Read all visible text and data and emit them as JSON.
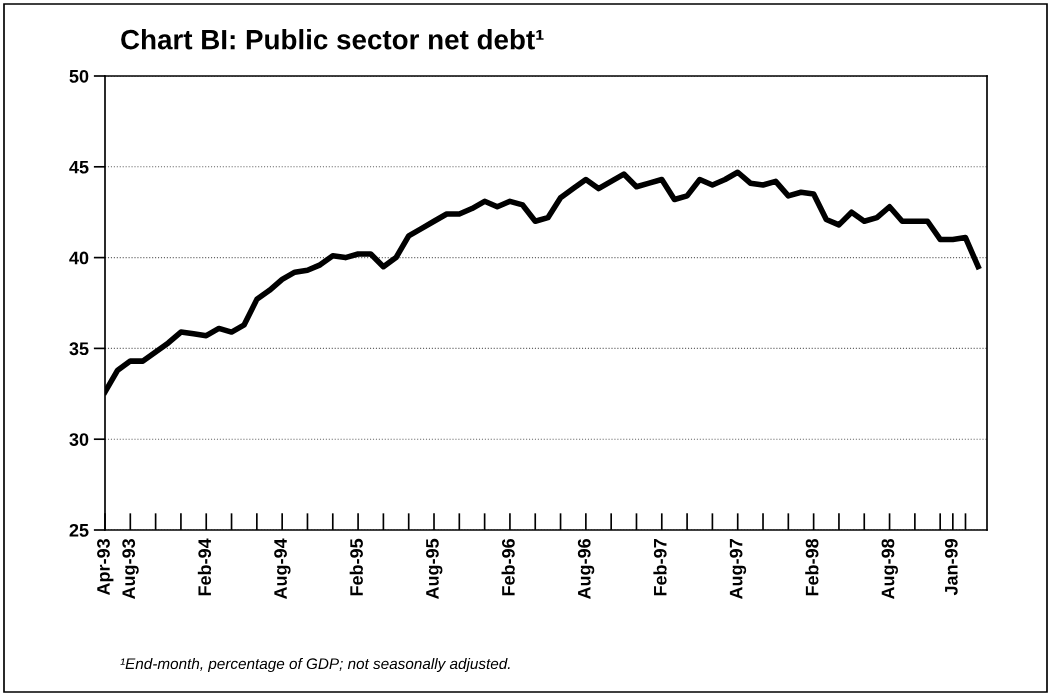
{
  "chart_data": {
    "type": "line",
    "title": "Chart BI: Public sector net debt¹",
    "categories": [
      "Apr-93",
      null,
      "Aug-93",
      null,
      null,
      null,
      null,
      null,
      "Feb-94",
      null,
      null,
      null,
      null,
      null,
      "Aug-94",
      null,
      null,
      null,
      null,
      null,
      "Feb-95",
      null,
      null,
      null,
      null,
      null,
      "Aug-95",
      null,
      null,
      null,
      null,
      null,
      "Feb-96",
      null,
      null,
      null,
      null,
      null,
      "Aug-96",
      null,
      null,
      null,
      null,
      null,
      "Feb-97",
      null,
      null,
      null,
      null,
      null,
      "Aug-97",
      null,
      null,
      null,
      null,
      null,
      "Feb-98",
      null,
      null,
      null,
      null,
      null,
      "Aug-98",
      null,
      null,
      null,
      null,
      "Jan-99",
      null,
      null
    ],
    "series": [
      {
        "color": "#000000",
        "values": [
          32.6,
          33.8,
          34.3,
          34.3,
          34.8,
          35.3,
          35.9,
          35.8,
          35.7,
          36.1,
          35.9,
          36.3,
          37.7,
          38.2,
          38.8,
          39.2,
          39.3,
          39.6,
          40.1,
          40.0,
          40.2,
          40.2,
          39.5,
          40.0,
          41.2,
          41.6,
          42.0,
          42.4,
          42.4,
          42.7,
          43.1,
          42.8,
          43.1,
          42.9,
          42.0,
          42.2,
          43.3,
          43.8,
          44.3,
          43.8,
          44.2,
          44.6,
          43.9,
          44.1,
          44.3,
          43.2,
          43.4,
          44.3,
          44.0,
          44.3,
          44.7,
          44.1,
          44.0,
          44.2,
          43.4,
          43.6,
          43.5,
          42.1,
          41.8,
          42.5,
          42.0,
          42.2,
          42.8,
          42.0,
          42.0,
          42.0,
          41.0,
          41.0,
          41.1,
          39.5
        ]
      }
    ],
    "ylim": [
      25,
      50
    ],
    "yticks": [
      25,
      30,
      35,
      40,
      45,
      50
    ],
    "grid": "y",
    "legend": false,
    "marker": "none",
    "line_style": "solid",
    "annotations": [
      "¹End-month, percentage of GDP; not seasonally adjusted."
    ]
  }
}
